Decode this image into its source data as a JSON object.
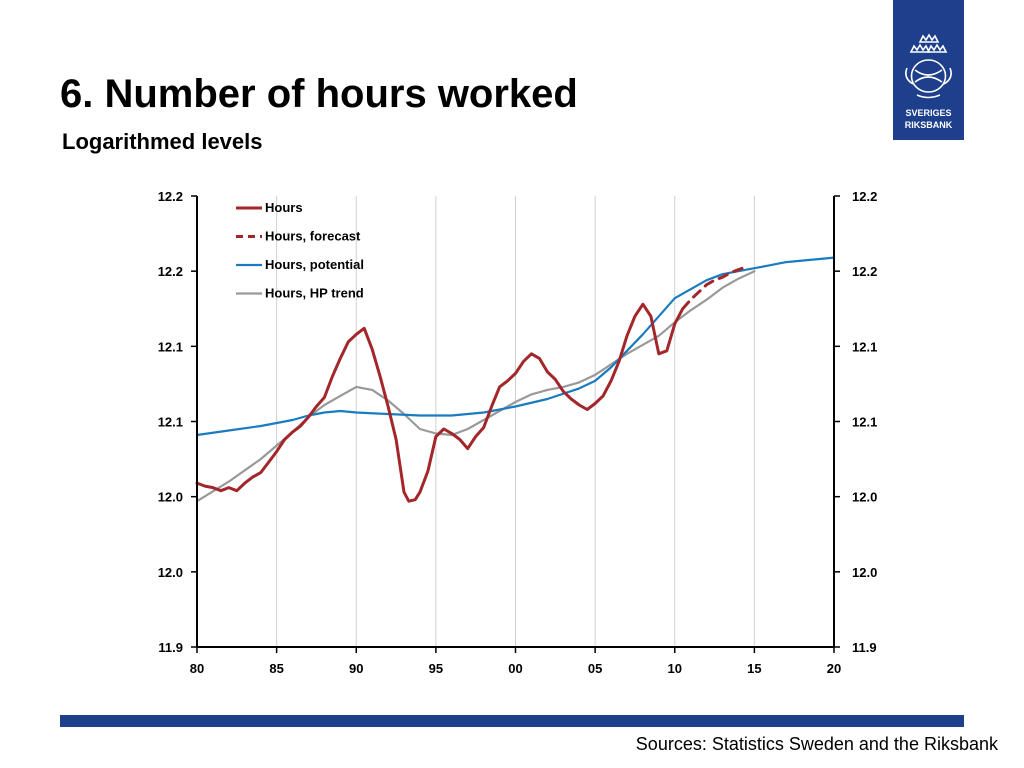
{
  "slide": {
    "title": "6. Number of hours worked",
    "subtitle": "Logarithmed levels",
    "source": "Sources: Statistics Sweden and the Riksbank",
    "logo_text": [
      "SVERIGES",
      "RIKSBANK"
    ],
    "brand_color": "#1d3f8c"
  },
  "chart_data": {
    "type": "line",
    "xlim": [
      1980,
      2020
    ],
    "ylim": [
      11.9,
      12.2
    ],
    "x_ticks": [
      1980,
      1985,
      1990,
      1995,
      2000,
      2005,
      2010,
      2015,
      2020
    ],
    "x_tick_labels": [
      "80",
      "85",
      "90",
      "95",
      "00",
      "05",
      "10",
      "15",
      "20"
    ],
    "y_ticks": [
      11.9,
      11.95,
      12.0,
      12.05,
      12.1,
      12.15,
      12.2
    ],
    "y_tick_labels": [
      "11.9",
      "12.0",
      "12.0",
      "12.1",
      "12.1",
      "12.2",
      "12.2"
    ],
    "grid": "vertical",
    "legend_position": "top-left",
    "series": [
      {
        "name": "Hours",
        "color": "#a3262a",
        "style": "solid",
        "points": [
          [
            1980,
            12.009
          ],
          [
            1980.5,
            12.007
          ],
          [
            1981,
            12.006
          ],
          [
            1981.5,
            12.004
          ],
          [
            1982,
            12.006
          ],
          [
            1982.5,
            12.004
          ],
          [
            1983,
            12.009
          ],
          [
            1983.5,
            12.013
          ],
          [
            1984,
            12.016
          ],
          [
            1984.5,
            12.023
          ],
          [
            1985,
            12.03
          ],
          [
            1985.5,
            12.038
          ],
          [
            1986,
            12.043
          ],
          [
            1986.5,
            12.047
          ],
          [
            1987,
            12.053
          ],
          [
            1987.5,
            12.06
          ],
          [
            1988,
            12.066
          ],
          [
            1988.5,
            12.08
          ],
          [
            1989,
            12.092
          ],
          [
            1989.5,
            12.103
          ],
          [
            1990,
            12.108
          ],
          [
            1990.5,
            12.112
          ],
          [
            1991,
            12.098
          ],
          [
            1991.5,
            12.08
          ],
          [
            1992,
            12.06
          ],
          [
            1992.5,
            12.038
          ],
          [
            1993,
            12.003
          ],
          [
            1993.3,
            11.997
          ],
          [
            1993.7,
            11.998
          ],
          [
            1994,
            12.003
          ],
          [
            1994.5,
            12.017
          ],
          [
            1995,
            12.04
          ],
          [
            1995.5,
            12.045
          ],
          [
            1996,
            12.042
          ],
          [
            1996.5,
            12.038
          ],
          [
            1997,
            12.032
          ],
          [
            1997.5,
            12.04
          ],
          [
            1998,
            12.046
          ],
          [
            1998.5,
            12.06
          ],
          [
            1999,
            12.073
          ],
          [
            1999.5,
            12.077
          ],
          [
            2000,
            12.082
          ],
          [
            2000.5,
            12.09
          ],
          [
            2001,
            12.095
          ],
          [
            2001.5,
            12.092
          ],
          [
            2002,
            12.083
          ],
          [
            2002.5,
            12.078
          ],
          [
            2003,
            12.07
          ],
          [
            2003.5,
            12.065
          ],
          [
            2004,
            12.061
          ],
          [
            2004.5,
            12.058
          ],
          [
            2005,
            12.062
          ],
          [
            2005.5,
            12.067
          ],
          [
            2006,
            12.077
          ],
          [
            2006.5,
            12.09
          ],
          [
            2007,
            12.107
          ],
          [
            2007.5,
            12.12
          ],
          [
            2008,
            12.128
          ],
          [
            2008.5,
            12.12
          ],
          [
            2009,
            12.095
          ],
          [
            2009.5,
            12.097
          ],
          [
            2010,
            12.115
          ],
          [
            2010.5,
            12.125
          ]
        ]
      },
      {
        "name": "Hours, forecast",
        "color": "#a3262a",
        "style": "dashed",
        "points": [
          [
            2010.5,
            12.125
          ],
          [
            2011,
            12.131
          ],
          [
            2011.5,
            12.136
          ],
          [
            2012,
            12.141
          ],
          [
            2012.5,
            12.144
          ],
          [
            2013,
            12.146
          ],
          [
            2013.5,
            12.149
          ],
          [
            2014,
            12.151
          ],
          [
            2014.5,
            12.153
          ]
        ]
      },
      {
        "name": "Hours, potential",
        "color": "#1b7bbf",
        "style": "solid",
        "points": [
          [
            1980,
            12.041
          ],
          [
            1982,
            12.044
          ],
          [
            1984,
            12.047
          ],
          [
            1986,
            12.051
          ],
          [
            1987,
            12.054
          ],
          [
            1988,
            12.056
          ],
          [
            1989,
            12.057
          ],
          [
            1990,
            12.056
          ],
          [
            1992,
            12.055
          ],
          [
            1994,
            12.054
          ],
          [
            1996,
            12.054
          ],
          [
            1998,
            12.056
          ],
          [
            2000,
            12.06
          ],
          [
            2002,
            12.065
          ],
          [
            2004,
            12.072
          ],
          [
            2005,
            12.077
          ],
          [
            2006,
            12.086
          ],
          [
            2007,
            12.097
          ],
          [
            2008,
            12.108
          ],
          [
            2009,
            12.12
          ],
          [
            2010,
            12.132
          ],
          [
            2011,
            12.138
          ],
          [
            2012,
            12.144
          ],
          [
            2013,
            12.148
          ],
          [
            2014,
            12.15
          ],
          [
            2015,
            12.152
          ],
          [
            2016,
            12.154
          ],
          [
            2017,
            12.156
          ],
          [
            2018,
            12.157
          ],
          [
            2019,
            12.158
          ],
          [
            2020,
            12.159
          ]
        ]
      },
      {
        "name": "Hours, HP trend",
        "color": "#999999",
        "style": "solid",
        "points": [
          [
            1980,
            11.997
          ],
          [
            1982,
            12.01
          ],
          [
            1984,
            12.025
          ],
          [
            1986,
            12.043
          ],
          [
            1987,
            12.053
          ],
          [
            1988,
            12.061
          ],
          [
            1989,
            12.067
          ],
          [
            1990,
            12.073
          ],
          [
            1991,
            12.071
          ],
          [
            1992,
            12.064
          ],
          [
            1993,
            12.055
          ],
          [
            1994,
            12.045
          ],
          [
            1995,
            12.042
          ],
          [
            1996,
            12.041
          ],
          [
            1997,
            12.045
          ],
          [
            1998,
            12.051
          ],
          [
            1999,
            12.057
          ],
          [
            2000,
            12.063
          ],
          [
            2001,
            12.068
          ],
          [
            2002,
            12.071
          ],
          [
            2003,
            12.073
          ],
          [
            2004,
            12.076
          ],
          [
            2005,
            12.081
          ],
          [
            2006,
            12.088
          ],
          [
            2007,
            12.095
          ],
          [
            2008,
            12.101
          ],
          [
            2009,
            12.107
          ],
          [
            2010,
            12.116
          ],
          [
            2011,
            12.124
          ],
          [
            2012,
            12.131
          ],
          [
            2013,
            12.139
          ],
          [
            2014,
            12.145
          ],
          [
            2015,
            12.15
          ]
        ]
      }
    ]
  }
}
